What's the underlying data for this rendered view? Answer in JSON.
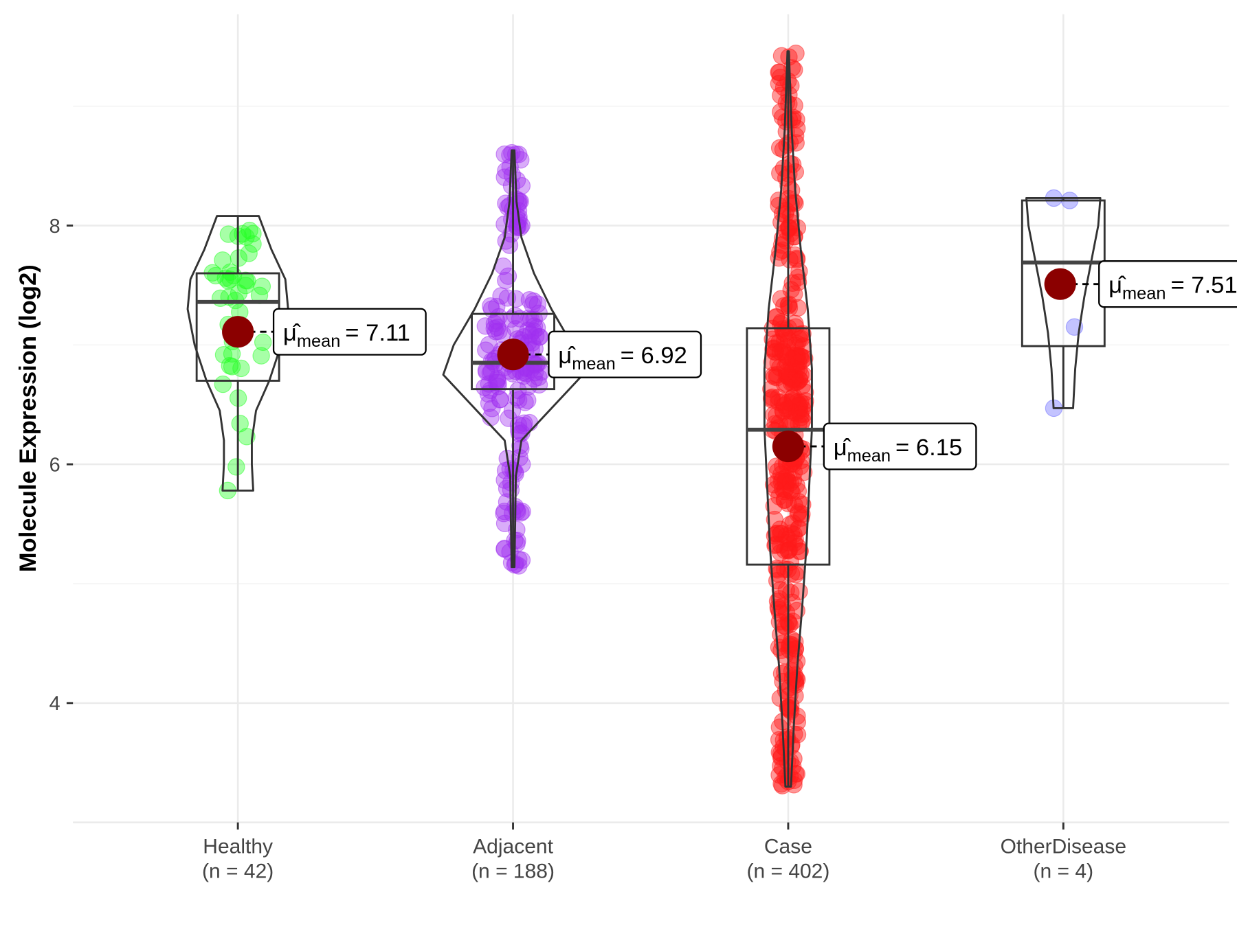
{
  "chart_data": {
    "type": "violin-box-scatter",
    "title": "",
    "xlabel": "",
    "ylabel": "Molecule Expression (log2)",
    "ylim": [
      3.0,
      9.77
    ],
    "yticks": [
      4,
      6,
      8
    ],
    "grid": true,
    "legend": "none",
    "mean_symbol": "μ̂",
    "mean_subscript": "mean",
    "mean_color": "#8b0000",
    "groups": [
      {
        "name": "Healthy",
        "n_label": "(n = 42)",
        "n": 42,
        "color": "#22ff22",
        "box": {
          "min": 5.78,
          "q1": 6.7,
          "median": 7.36,
          "q3": 7.6,
          "max": 8.08
        },
        "mean": 7.11,
        "mean_text": "= 7.11",
        "density": [
          [
            5.78,
            0.22
          ],
          [
            6.0,
            0.2
          ],
          [
            6.2,
            0.2
          ],
          [
            6.45,
            0.26
          ],
          [
            6.7,
            0.45
          ],
          [
            7.0,
            0.62
          ],
          [
            7.3,
            0.72
          ],
          [
            7.55,
            0.68
          ],
          [
            7.8,
            0.48
          ],
          [
            8.08,
            0.3
          ]
        ]
      },
      {
        "name": "Adjacent",
        "n_label": "(n = 188)",
        "n": 188,
        "color": "#a030f0",
        "box": {
          "min": 5.14,
          "q1": 6.63,
          "median": 6.85,
          "q3": 7.26,
          "max": 8.63
        },
        "mean": 6.92,
        "mean_text": "= 6.92",
        "density": [
          [
            5.14,
            0.02
          ],
          [
            5.5,
            0.03
          ],
          [
            5.9,
            0.04
          ],
          [
            6.2,
            0.12
          ],
          [
            6.5,
            0.6
          ],
          [
            6.75,
            1.0
          ],
          [
            7.0,
            0.85
          ],
          [
            7.3,
            0.55
          ],
          [
            7.6,
            0.3
          ],
          [
            7.9,
            0.12
          ],
          [
            8.2,
            0.05
          ],
          [
            8.63,
            0.02
          ]
        ]
      },
      {
        "name": "Case",
        "n_label": "(n = 402)",
        "n": 402,
        "color": "#ff1a1a",
        "box": {
          "min": 3.3,
          "q1": 5.16,
          "median": 6.29,
          "q3": 7.14,
          "max": 9.46
        },
        "mean": 6.15,
        "mean_text": "= 6.15",
        "density": [
          [
            3.3,
            0.04
          ],
          [
            3.8,
            0.08
          ],
          [
            4.3,
            0.13
          ],
          [
            4.8,
            0.2
          ],
          [
            5.3,
            0.26
          ],
          [
            5.8,
            0.3
          ],
          [
            6.3,
            0.34
          ],
          [
            6.8,
            0.34
          ],
          [
            7.3,
            0.28
          ],
          [
            7.8,
            0.18
          ],
          [
            8.3,
            0.1
          ],
          [
            8.8,
            0.05
          ],
          [
            9.46,
            0.01
          ]
        ]
      },
      {
        "name": "OtherDisease",
        "n_label": "(n = 4)",
        "n": 4,
        "color": "#6a6aff",
        "box": {
          "min": 6.47,
          "q1": 6.99,
          "median": 7.69,
          "q3": 8.21,
          "max": 8.23
        },
        "mean": 7.51,
        "mean_text": "= 7.51",
        "points": [
          8.23,
          8.21,
          7.15,
          6.47
        ],
        "density": [
          [
            6.47,
            0.14
          ],
          [
            6.8,
            0.17
          ],
          [
            7.1,
            0.22
          ],
          [
            7.4,
            0.3
          ],
          [
            7.7,
            0.4
          ],
          [
            8.0,
            0.5
          ],
          [
            8.23,
            0.53
          ]
        ]
      }
    ]
  }
}
